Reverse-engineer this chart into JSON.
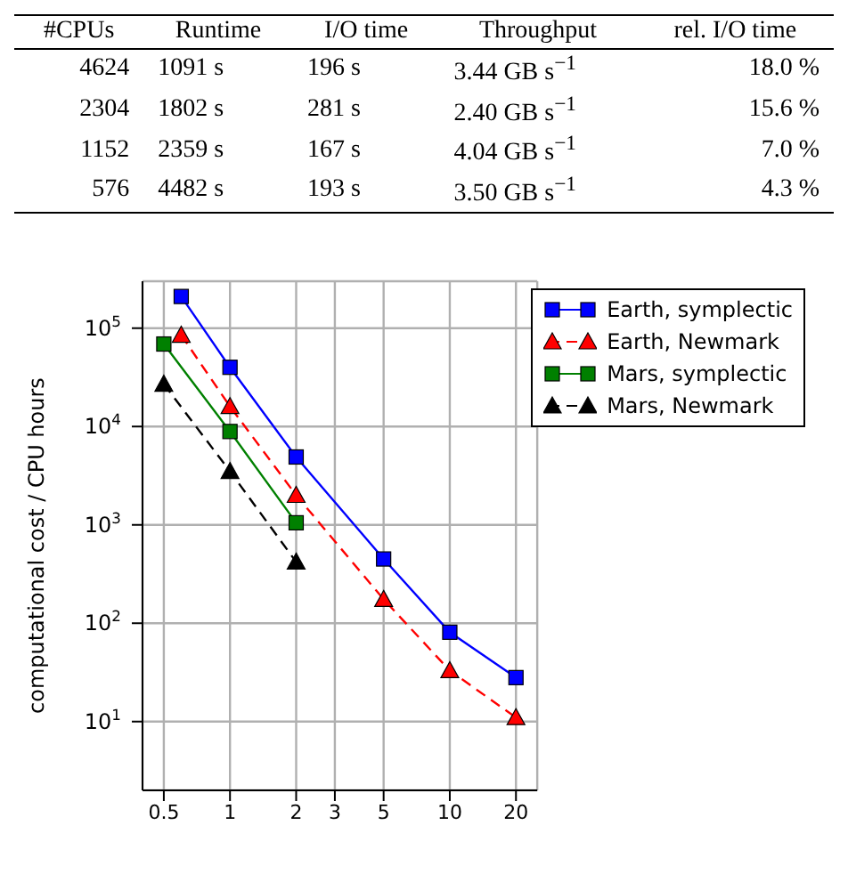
{
  "chart_data": {
    "type": "line",
    "annotations": [
      "#CPUs",
      "Runtime",
      "I/O time",
      "Throughput",
      "rel. I/O time",
      "4624",
      "1091 s",
      "196 s",
      "3.44 GB s$^{−1}$",
      "18.0 %",
      "2304",
      "1802 s",
      "281 s",
      "2.40 GB s$^{−1}$",
      "15.6 %",
      "1152",
      "2359 s",
      "167 s",
      "4.04 GB s$^{−1}$",
      "7.0 %",
      "576",
      "4482 s",
      "193 s",
      "3.50 GB s$^{−1}$",
      "4.3 %"
    ],
    "ylabel": "computational cost / CPU hours",
    "log": "xy",
    "grid": true,
    "legend": "top right",
    "xlim": [
      0.4,
      25
    ],
    "xticks": [
      0.5,
      1,
      2,
      3,
      5,
      10,
      20
    ],
    "ylim": [
      2,
      300000
    ],
    "yticks": [
      {
        "value": 10,
        "label": "10$^{1}$"
      },
      {
        "value": 100,
        "label": "10$^{2}$"
      },
      {
        "value": 1000,
        "label": "10$^{3}$"
      },
      {
        "value": 10000,
        "label": "10$^{4}$"
      },
      {
        "value": 100000,
        "label": "10$^{5}$"
      }
    ],
    "series": [
      {
        "name": "Earth, symplectic",
        "color": "#0000ff",
        "marker": "square",
        "line_style": "solid",
        "x": [
          0.6,
          1,
          2,
          5,
          10,
          20
        ],
        "values": [
          210000,
          40000,
          4900,
          450,
          81,
          28
        ]
      },
      {
        "name": "Earth, Newmark",
        "color": "#ff0000",
        "marker": "triangle",
        "line_style": "dashed",
        "x": [
          0.6,
          1,
          2,
          5,
          10,
          20
        ],
        "values": [
          85000,
          16000,
          2000,
          175,
          33,
          11
        ]
      },
      {
        "name": "Mars, symplectic",
        "color": "#008000",
        "marker": "square",
        "line_style": "solid",
        "x": [
          0.5,
          1,
          2
        ],
        "values": [
          69000,
          8900,
          1050
        ]
      },
      {
        "name": "Mars, Newmark",
        "color": "#000000",
        "marker": "triangle",
        "line_style": "dashed",
        "x": [
          0.5,
          1,
          2
        ],
        "values": [
          27000,
          3500,
          420
        ]
      }
    ]
  }
}
